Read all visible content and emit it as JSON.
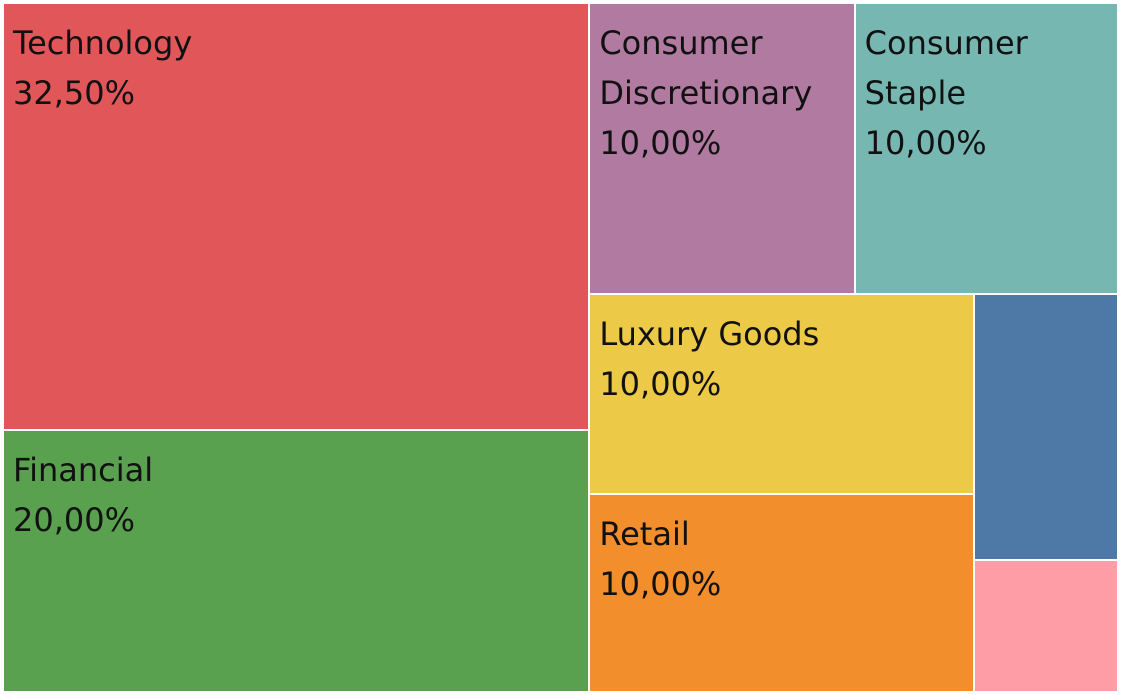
{
  "chart_data": {
    "type": "treemap",
    "series": [
      {
        "name": "Technology",
        "label": "Technology",
        "value": 32.5,
        "value_label": "32,50%",
        "color": "#E15759"
      },
      {
        "name": "Financial",
        "label": "Financial",
        "value": 20.0,
        "value_label": "20,00%",
        "color": "#59A14F"
      },
      {
        "name": "Consumer Discretionary",
        "label": "Consumer\nDiscretionary",
        "value": 10.0,
        "value_label": "10,00%",
        "color": "#B07AA1"
      },
      {
        "name": "Consumer Staple",
        "label": "Consumer\nStaple",
        "value": 10.0,
        "value_label": "10,00%",
        "color": "#76B7B2"
      },
      {
        "name": "Luxury Goods",
        "label": "Luxury Goods",
        "value": 10.0,
        "value_label": "10,00%",
        "color": "#EDC948"
      },
      {
        "name": "Retail",
        "label": "Retail",
        "value": 10.0,
        "value_label": "10,00%",
        "color": "#F28E2B"
      },
      {
        "name": "",
        "label": "",
        "value": 5.0,
        "value_label": "",
        "color": "#4E79A7"
      },
      {
        "name": "",
        "label": "",
        "value": 2.5,
        "value_label": "",
        "color": "#FF9DA7"
      }
    ]
  }
}
